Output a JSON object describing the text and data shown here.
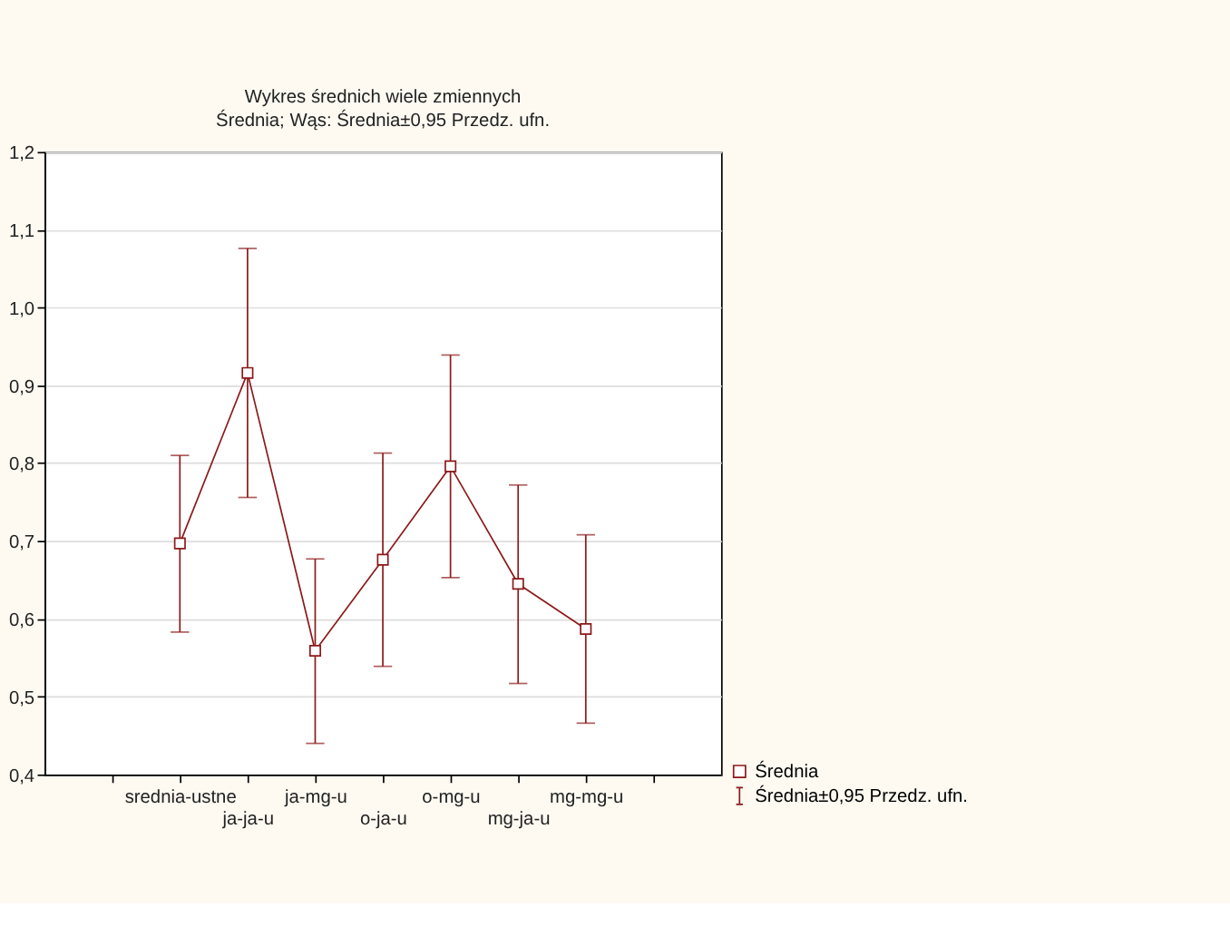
{
  "chart_data": {
    "type": "line",
    "title": "Wykres średnich    wiele zmiennych",
    "subtitle": "Średnia; Wąs: Średnia±0,95 Przedz. ufn.",
    "categories": [
      null,
      "srednia-ustne",
      "ja-ja-u",
      "ja-mg-u",
      "o-ja-u",
      "o-mg-u",
      "mg-ja-u",
      "mg-mg-u",
      null
    ],
    "series": [
      {
        "name": "Średnia",
        "color": "#8b1a1a",
        "values": [
          null,
          0.697,
          0.916,
          0.559,
          0.676,
          0.796,
          0.645,
          0.587,
          null
        ],
        "errors": [
          null,
          [
            0.583,
            0.81
          ],
          [
            0.756,
            1.076
          ],
          [
            0.44,
            0.677
          ],
          [
            0.539,
            0.813
          ],
          [
            0.653,
            0.939
          ],
          [
            0.517,
            0.772
          ],
          [
            0.466,
            0.708
          ],
          null
        ]
      }
    ],
    "annotations": [
      "Średnia±0,95 Przedz. ufn."
    ],
    "ylim": [
      0.4,
      1.2
    ],
    "yticks": [
      {
        "value": 0.4,
        "label": "0,4"
      },
      {
        "value": 0.5,
        "label": "0,5"
      },
      {
        "value": 0.6,
        "label": "0,6"
      },
      {
        "value": 0.7,
        "label": "0,7"
      },
      {
        "value": 0.8,
        "label": "0,8"
      },
      {
        "value": 0.9,
        "label": "0,9"
      },
      {
        "value": 1.0,
        "label": "1,0"
      },
      {
        "value": 1.1,
        "label": "1,1"
      },
      {
        "value": 1.2,
        "label": "1,2"
      }
    ],
    "grid": "y",
    "marker": "square",
    "line_style": "solid",
    "legend": "bottom right"
  }
}
